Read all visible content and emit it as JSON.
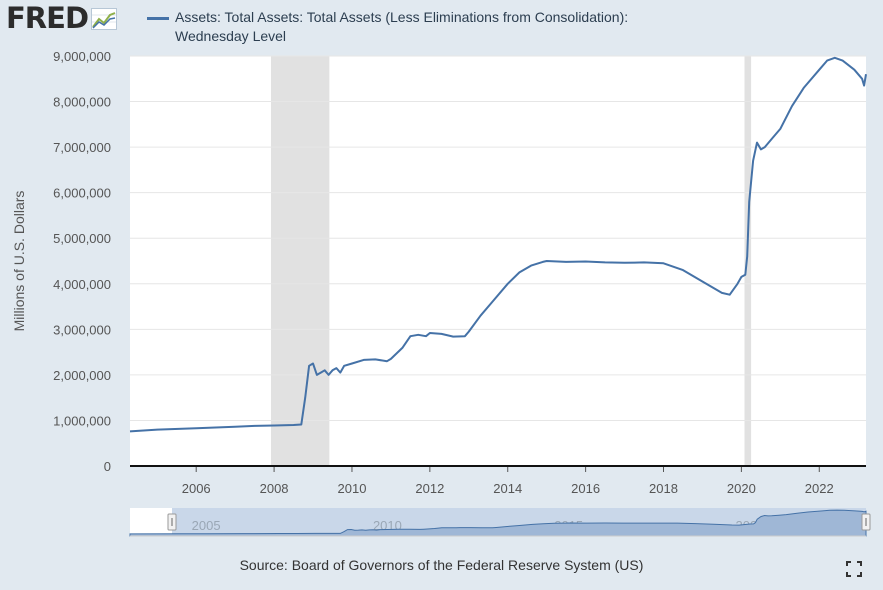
{
  "brand": {
    "logo_text": "FRED"
  },
  "legend": {
    "label": "Assets: Total Assets: Total Assets (Less Eliminations from Consolidation): Wednesday Level",
    "color": "#4572a7"
  },
  "source": {
    "text": "Source: Board of Governors of the Federal Reserve System (US)"
  },
  "icons": {
    "logo": "fred-graph-icon",
    "fullscreen": "fullscreen-icon"
  },
  "chart_data": {
    "type": "line",
    "title": "Assets: Total Assets: Total Assets (Less Eliminations from Consolidation): Wednesday Level",
    "xlabel": "",
    "ylabel": "Millions of U.S. Dollars",
    "xlim": [
      2004.3,
      2023.2
    ],
    "ylim": [
      0,
      9000000
    ],
    "x_ticks": [
      2006,
      2008,
      2010,
      2012,
      2014,
      2016,
      2018,
      2020,
      2022
    ],
    "y_ticks": [
      0,
      1000000,
      2000000,
      3000000,
      4000000,
      5000000,
      6000000,
      7000000,
      8000000,
      9000000
    ],
    "y_tick_labels": [
      "0",
      "1,000,000",
      "2,000,000",
      "3,000,000",
      "4,000,000",
      "5,000,000",
      "6,000,000",
      "7,000,000",
      "8,000,000",
      "9,000,000"
    ],
    "recessions": [
      [
        2007.92,
        2009.42
      ],
      [
        2020.08,
        2020.25
      ]
    ],
    "grid": true,
    "series": [
      {
        "name": "Assets: Total Assets: Total Assets (Less Eliminations from Consolidation): Wednesday Level",
        "color": "#4572a7",
        "x": [
          2004.3,
          2005.0,
          2006.0,
          2007.0,
          2007.5,
          2008.0,
          2008.5,
          2008.7,
          2008.8,
          2008.9,
          2009.0,
          2009.1,
          2009.2,
          2009.3,
          2009.4,
          2009.5,
          2009.6,
          2009.7,
          2009.8,
          2010.0,
          2010.3,
          2010.6,
          2010.9,
          2011.0,
          2011.3,
          2011.5,
          2011.7,
          2011.9,
          2012.0,
          2012.3,
          2012.6,
          2012.9,
          2013.0,
          2013.3,
          2013.6,
          2014.0,
          2014.3,
          2014.6,
          2014.9,
          2015.0,
          2015.5,
          2016.0,
          2016.5,
          2017.0,
          2017.5,
          2018.0,
          2018.5,
          2019.0,
          2019.5,
          2019.7,
          2019.9,
          2020.0,
          2020.1,
          2020.15,
          2020.2,
          2020.3,
          2020.4,
          2020.5,
          2020.6,
          2020.8,
          2021.0,
          2021.3,
          2021.6,
          2022.0,
          2022.2,
          2022.4,
          2022.6,
          2022.9,
          2023.1,
          2023.15,
          2023.2
        ],
        "y": [
          760000,
          800000,
          830000,
          860000,
          880000,
          890000,
          900000,
          910000,
          1500000,
          2200000,
          2250000,
          2000000,
          2050000,
          2100000,
          2000000,
          2100000,
          2150000,
          2050000,
          2200000,
          2250000,
          2330000,
          2340000,
          2300000,
          2350000,
          2600000,
          2850000,
          2880000,
          2850000,
          2920000,
          2900000,
          2840000,
          2850000,
          2950000,
          3300000,
          3600000,
          4000000,
          4250000,
          4400000,
          4480000,
          4500000,
          4480000,
          4490000,
          4470000,
          4460000,
          4470000,
          4450000,
          4300000,
          4050000,
          3800000,
          3760000,
          4000000,
          4150000,
          4200000,
          4600000,
          5800000,
          6700000,
          7100000,
          6950000,
          7000000,
          7200000,
          7400000,
          7900000,
          8300000,
          8700000,
          8900000,
          8960000,
          8900000,
          8700000,
          8500000,
          8350000,
          8600000
        ]
      }
    ]
  }
}
